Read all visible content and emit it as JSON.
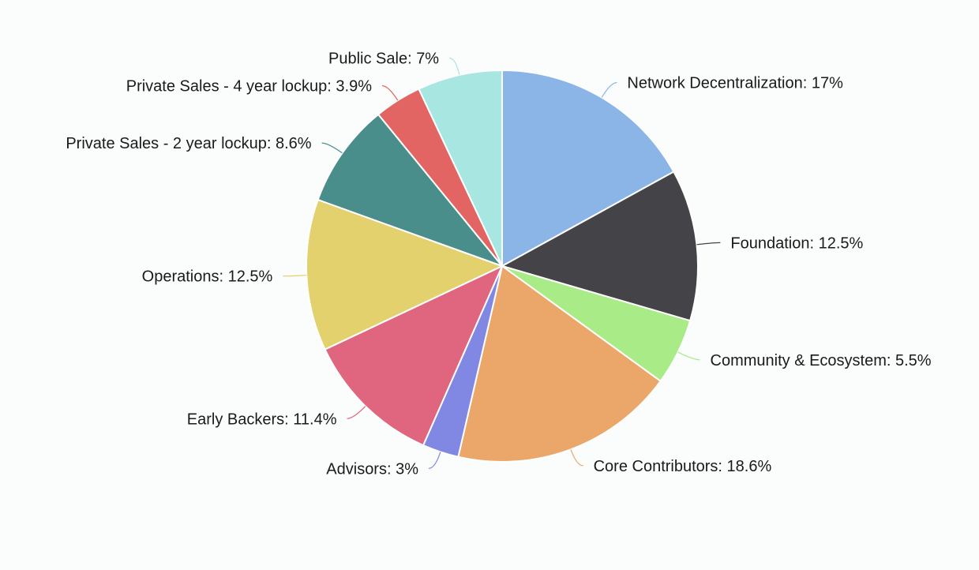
{
  "chart_data": {
    "type": "pie",
    "title": "",
    "slices": [
      {
        "label": "Network Decentralization",
        "value": 17,
        "text": "Network Decentralization: 17%",
        "color": "#8bb4e7"
      },
      {
        "label": "Foundation",
        "value": 12.5,
        "text": "Foundation: 12.5%",
        "color": "#434348"
      },
      {
        "label": "Community & Ecosystem",
        "value": 5.5,
        "text": "Community & Ecosystem: 5.5%",
        "color": "#a8eb87"
      },
      {
        "label": "Core Contributors",
        "value": 18.6,
        "text": "Core Contributors: 18.6%",
        "color": "#eba76a"
      },
      {
        "label": "Advisors",
        "value": 3,
        "text": "Advisors: 3%",
        "color": "#8088e3"
      },
      {
        "label": "Early Backers",
        "value": 11.4,
        "text": "Early Backers: 11.4%",
        "color": "#e0657f"
      },
      {
        "label": "Operations",
        "value": 12.5,
        "text": "Operations: 12.5%",
        "color": "#e2d16c"
      },
      {
        "label": "Private Sales - 2 year lockup",
        "value": 8.6,
        "text": "Private Sales - 2 year lockup: 8.6%",
        "color": "#4a8e8c"
      },
      {
        "label": "Private Sales - 4 year lockup",
        "value": 3.9,
        "text": "Private Sales - 4 year lockup: 3.9%",
        "color": "#e26563"
      },
      {
        "label": "Public Sale",
        "value": 7,
        "text": "Public Sale: 7%",
        "color": "#a8e6e2"
      }
    ]
  }
}
